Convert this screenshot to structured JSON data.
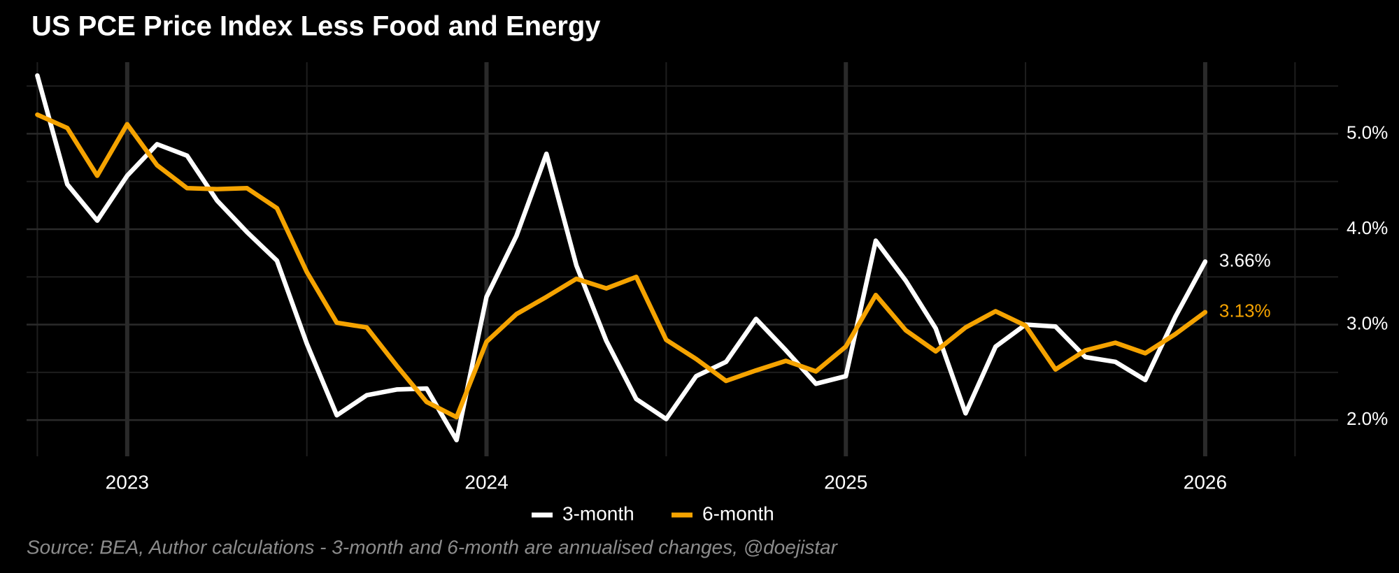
{
  "chart_data": {
    "type": "line",
    "title": "US PCE Price Index Less Food and Energy",
    "source": "Source: BEA, Author calculations - 3-month and 6-month are annualised changes, @doejistar",
    "x": [
      2022.75,
      2022.8333,
      2022.9167,
      2023,
      2023.0833,
      2023.1667,
      2023.25,
      2023.3333,
      2023.4167,
      2023.5,
      2023.5833,
      2023.6667,
      2023.75,
      2023.8333,
      2023.9167,
      2024,
      2024.0833,
      2024.1667,
      2024.25,
      2024.3333,
      2024.4167,
      2024.5,
      2024.5833,
      2024.6667,
      2024.75,
      2024.8333,
      2024.9167,
      2025,
      2025.0833,
      2025.1667,
      2025.25,
      2025.3333,
      2025.4167,
      2025.5,
      2025.5833,
      2025.6667,
      2025.75,
      2025.8333,
      2025.9167,
      2026
    ],
    "series": [
      {
        "name": "3-month",
        "color": "#ffffff",
        "end_label": "3.66%",
        "values": [
          5.61,
          4.47,
          4.09,
          4.56,
          4.89,
          4.77,
          4.3,
          3.97,
          3.67,
          2.8,
          2.05,
          2.26,
          2.32,
          2.33,
          1.79,
          3.29,
          3.93,
          4.79,
          3.62,
          2.83,
          2.22,
          2.01,
          2.46,
          2.61,
          3.06,
          2.73,
          2.38,
          2.46,
          3.88,
          3.46,
          2.96,
          2.07,
          2.77,
          3.0,
          2.98,
          2.66,
          2.61,
          2.42,
          3.08,
          3.66
        ]
      },
      {
        "name": "6-month",
        "color": "#f5a300",
        "end_label": "3.13%",
        "values": [
          5.2,
          5.06,
          4.56,
          5.1,
          4.67,
          4.43,
          4.42,
          4.43,
          4.22,
          3.55,
          3.02,
          2.97,
          2.57,
          2.19,
          2.03,
          2.82,
          3.11,
          3.29,
          3.48,
          3.38,
          3.5,
          2.84,
          2.64,
          2.41,
          2.52,
          2.62,
          2.51,
          2.77,
          3.31,
          2.94,
          2.72,
          2.97,
          3.14,
          2.99,
          2.53,
          2.73,
          2.81,
          2.7,
          2.9,
          3.13
        ]
      }
    ],
    "xlim": [
      2022.72,
      2026.37
    ],
    "xticks": [
      2023,
      2024,
      2025,
      2026
    ],
    "minor_xticks": [
      2022.75,
      2023.5,
      2024.5,
      2025.5,
      2026.25
    ],
    "ylim": [
      1.62,
      5.75
    ],
    "yticks": [
      {
        "value": 2,
        "label": "2.0%"
      },
      {
        "value": 3,
        "label": "3.0%"
      },
      {
        "value": 4,
        "label": "4.0%"
      },
      {
        "value": 5,
        "label": "5.0%"
      }
    ],
    "minor_yticks": [
      2.5,
      3.5,
      4.5,
      5.5
    ],
    "grid": true,
    "legend": "bottom"
  }
}
